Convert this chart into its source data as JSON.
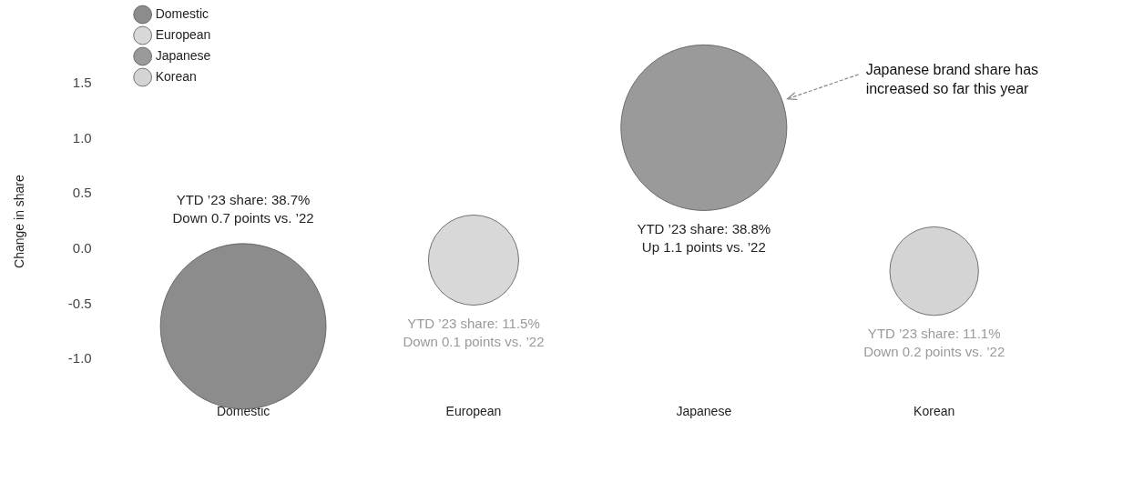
{
  "chart_data": {
    "type": "bubble",
    "ylabel": "Change in share",
    "categories": [
      "Domestic",
      "European",
      "Japanese",
      "Korean"
    ],
    "series": [
      {
        "name": "Domestic",
        "color": "#8c8c8c",
        "values": [
          -0.7,
          null,
          null,
          null
        ],
        "sizes": [
          0.997,
          null,
          null,
          null
        ],
        "value_labels": [
          "YTD ’23 share: 38.7%\nDown 0.7 points vs. ’22",
          null,
          null,
          null
        ]
      },
      {
        "name": "European",
        "color": "#d8d8d8",
        "values": [
          null,
          -0.1,
          null,
          null
        ],
        "sizes": [
          null,
          0.296,
          null,
          null
        ],
        "value_labels": [
          null,
          "YTD ’23 share: 11.5%\nDown 0.1 points vs. ’22",
          null,
          null
        ]
      },
      {
        "name": "Japanese",
        "color": "#9a9a9a",
        "values": [
          null,
          null,
          1.1,
          null
        ],
        "sizes": [
          null,
          null,
          1,
          null
        ],
        "value_labels": [
          null,
          null,
          "YTD ’23 share: 38.8%\nUp 1.1 points vs. ’22",
          null
        ]
      },
      {
        "name": "Korean",
        "color": "#d4d4d4",
        "values": [
          null,
          null,
          null,
          -0.2
        ],
        "sizes": [
          null,
          null,
          null,
          0.286
        ],
        "value_labels": [
          null,
          null,
          null,
          "YTD ’23 share: 11.1%\nDown 0.2 points vs. ’22"
        ]
      }
    ],
    "ylim": [
      -1,
      1.5
    ],
    "yticks": [
      {
        "value": -1,
        "label": "-1.0"
      },
      -0.5,
      {
        "value": 0,
        "label": "0.0"
      },
      0.5,
      {
        "value": 1,
        "label": "1.0"
      },
      1.5
    ],
    "grid": false,
    "legend": "top left",
    "annotations": [
      "Japanese brand share has increased so far this year"
    ]
  }
}
